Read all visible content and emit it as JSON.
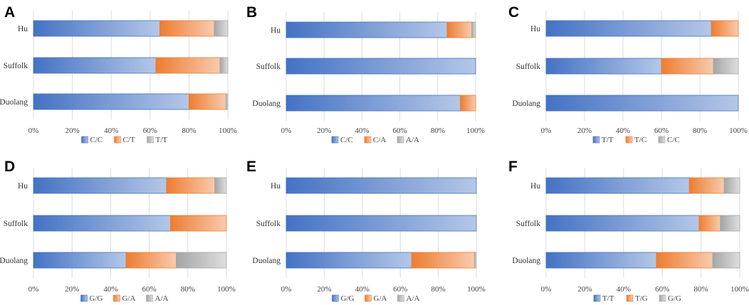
{
  "chart_data": [
    {
      "panel": "A",
      "type": "bar",
      "orientation": "horizontal",
      "stacked": true,
      "categories": [
        "Hu",
        "Suffolk",
        "Duolang"
      ],
      "series": [
        {
          "name": "C/C",
          "values": [
            65,
            63,
            80
          ]
        },
        {
          "name": "C/T",
          "values": [
            28,
            33,
            19
          ]
        },
        {
          "name": "T/T",
          "values": [
            7,
            4,
            1
          ]
        }
      ],
      "xlim": [
        0,
        100
      ],
      "xticks": [
        "0%",
        "20%",
        "40%",
        "60%",
        "80%",
        "100%"
      ],
      "legend": "bottom",
      "grid": true
    },
    {
      "panel": "B",
      "type": "bar",
      "orientation": "horizontal",
      "stacked": true,
      "categories": [
        "Hu",
        "Suffolk",
        "Duolang"
      ],
      "series": [
        {
          "name": "C/C",
          "values": [
            85,
            100,
            92
          ]
        },
        {
          "name": "C/A",
          "values": [
            13,
            0,
            8
          ]
        },
        {
          "name": "A/A",
          "values": [
            2,
            0,
            0
          ]
        }
      ],
      "xlim": [
        0,
        100
      ],
      "xticks": [
        "0%",
        "20%",
        "40%",
        "60%",
        "80%",
        "100%"
      ],
      "legend": "bottom",
      "grid": true
    },
    {
      "panel": "C",
      "type": "bar",
      "orientation": "horizontal",
      "stacked": true,
      "categories": [
        "Hu",
        "Suffolk",
        "Duolang"
      ],
      "series": [
        {
          "name": "T/T",
          "values": [
            86,
            60,
            100
          ]
        },
        {
          "name": "T/C",
          "values": [
            14,
            27,
            0
          ]
        },
        {
          "name": "C/C",
          "values": [
            0,
            13,
            0
          ]
        }
      ],
      "xlim": [
        0,
        100
      ],
      "xticks": [
        "0%",
        "20%",
        "40%",
        "60%",
        "80%",
        "100%"
      ],
      "legend": "bottom",
      "grid": true
    },
    {
      "panel": "D",
      "type": "bar",
      "orientation": "horizontal",
      "stacked": true,
      "categories": [
        "Hu",
        "Suffolk",
        "Duolang"
      ],
      "series": [
        {
          "name": "G/G",
          "values": [
            69,
            71,
            48
          ]
        },
        {
          "name": "G/A",
          "values": [
            25,
            29,
            26
          ]
        },
        {
          "name": "A/A",
          "values": [
            6,
            0,
            26
          ]
        }
      ],
      "xlim": [
        0,
        100
      ],
      "xticks": [
        "0%",
        "20%",
        "40%",
        "60%",
        "80%",
        "100%"
      ],
      "legend": "bottom",
      "grid": true
    },
    {
      "panel": "E",
      "type": "bar",
      "orientation": "horizontal",
      "stacked": true,
      "categories": [
        "Hu",
        "Suffolk",
        "Duolang"
      ],
      "series": [
        {
          "name": "G/G",
          "values": [
            100,
            100,
            66
          ]
        },
        {
          "name": "G/A",
          "values": [
            0,
            0,
            33
          ]
        },
        {
          "name": "A/A",
          "values": [
            0,
            0,
            1
          ]
        }
      ],
      "xlim": [
        0,
        100
      ],
      "xticks": [
        "0%",
        "20%",
        "40%",
        "60%",
        "80%",
        "100%"
      ],
      "legend": "bottom",
      "grid": true
    },
    {
      "panel": "F",
      "type": "bar",
      "orientation": "horizontal",
      "stacked": true,
      "categories": [
        "Hu",
        "Suffolk",
        "Duolang"
      ],
      "series": [
        {
          "name": "T/T",
          "values": [
            74,
            79,
            57
          ]
        },
        {
          "name": "T/G",
          "values": [
            18,
            11,
            29
          ]
        },
        {
          "name": "G/G",
          "values": [
            8,
            10,
            14
          ]
        }
      ],
      "xlim": [
        0,
        100
      ],
      "xticks": [
        "0%",
        "20%",
        "40%",
        "60%",
        "80%",
        "100%"
      ],
      "legend": "bottom",
      "grid": true
    }
  ],
  "colors": {
    "series1_dark": "#4472c4",
    "series1_light": "#b4c7e7",
    "series2_dark": "#ed7d31",
    "series2_light": "#f8cbad",
    "series3_dark": "#a5a5a5",
    "series3_light": "#dedede",
    "grid": "#dcdcdc"
  }
}
